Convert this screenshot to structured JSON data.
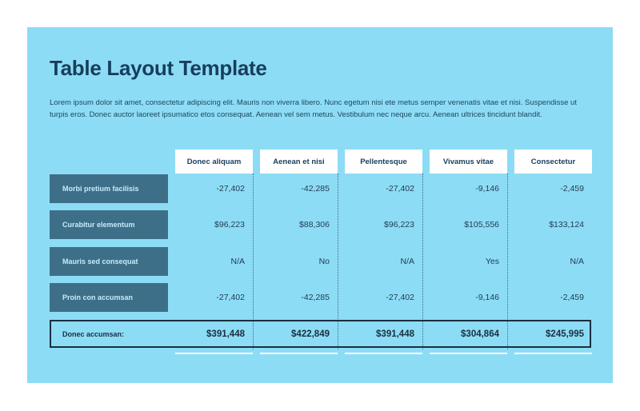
{
  "title": "Table Layout Template",
  "description": "Lorem ipsum dolor sit amet, consectetur adipiscing elit. Mauris non viverra libero. Nunc egetum nisi ete metus semper venenatis vitae et nisi. Suspendisse ut turpis eros. Donec auctor laoreet ipsumatico etos consequat. Aenean vel sem metus. Vestibulum nec neque arcu. Aenean ultrices tincidunt blandit.",
  "table": {
    "columns": [
      "Donec aliquam",
      "Aenean et nisi",
      "Pellentesque",
      "Vivamus vitae",
      "Consectetur"
    ],
    "rows": [
      {
        "label": "Morbi pretium facilisis",
        "values": [
          "-27,402",
          "-42,285",
          "-27,402",
          "-9,146",
          "-2,459"
        ]
      },
      {
        "label": "Curabitur elementum",
        "values": [
          "$96,223",
          "$88,306",
          "$96,223",
          "$105,556",
          "$133,124"
        ]
      },
      {
        "label": "Mauris sed consequat",
        "values": [
          "N/A",
          "No",
          "N/A",
          "Yes",
          "N/A"
        ]
      },
      {
        "label": "Proin con accumsan",
        "values": [
          "-27,402",
          "-42,285",
          "-27,402",
          "-9,146",
          "-2,459"
        ]
      }
    ],
    "total": {
      "label": "Donec accumsan:",
      "values": [
        "$391,448",
        "$422,849",
        "$391,448",
        "$304,864",
        "$245,995"
      ]
    }
  },
  "colors": {
    "panel_background": "#8ddcf5",
    "row_header_background": "#3e6f88",
    "title_text": "#173e5c"
  }
}
